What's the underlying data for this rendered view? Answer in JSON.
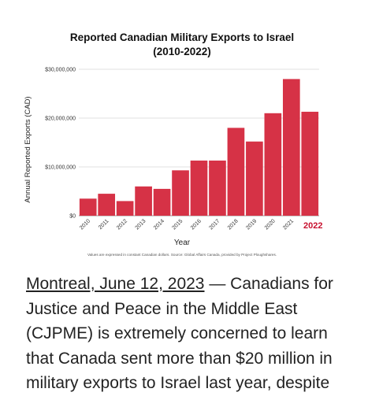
{
  "chart_data": {
    "type": "bar",
    "title": "Reported Canadian Military Exports to Israel",
    "subtitle": "(2010-2022)",
    "xlabel": "Year",
    "ylabel": "Annual Reported Exports (CAD)",
    "categories": [
      "2010",
      "2011",
      "2012",
      "2013",
      "2014",
      "2015",
      "2016",
      "2017",
      "2018",
      "2019",
      "2020",
      "2021",
      "2022"
    ],
    "highlight_category": "2022",
    "values": [
      3500000,
      4500000,
      3000000,
      6000000,
      5500000,
      9300000,
      11300000,
      11300000,
      18000000,
      15200000,
      21000000,
      28000000,
      21300000
    ],
    "ylim": [
      0,
      30000000
    ],
    "yticks": [
      0,
      10000000,
      20000000,
      30000000
    ],
    "ytick_labels": [
      "$0",
      "$10,000,000",
      "$20,000,000",
      "$30,000,000"
    ],
    "grid": true,
    "bar_color": "#d63246",
    "highlight_label_color": "#c8102e",
    "footnote": "Values are expressed in constant Canadian dollars. Source: Global Affairs Canada, provided by Project Ploughshares."
  },
  "article": {
    "dateline": "Montreal, June 12, 2023",
    "text": " — Canadians for Justice and Peace in the Middle East (CJPME) is extremely concerned to learn that Canada sent more than $20 million in military exports to Israel last year, despite"
  }
}
